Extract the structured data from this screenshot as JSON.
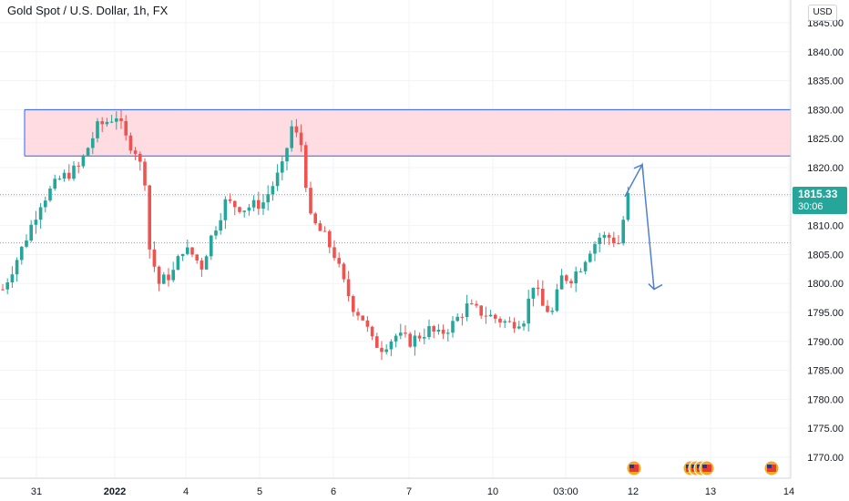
{
  "header": {
    "title": "Gold Spot / U.S. Dollar, 1h, FX",
    "currency": "USD"
  },
  "last_price": {
    "value": "1815.33",
    "countdown": "30:06",
    "color": "#26a69a"
  },
  "colors": {
    "up": "#26a69a",
    "down": "#ef5350",
    "zone_fill": "#ffd6dc",
    "zone_border": "#2962ff",
    "arrow": "#4f7fd1",
    "grid": "#f0f3fa",
    "axis_text": "#131722"
  },
  "chart_data": {
    "type": "candlestick",
    "title": "Gold Spot / U.S. Dollar, 1h, FX",
    "y_ticks": [
      "1770.00",
      "1775.00",
      "1780.00",
      "1785.00",
      "1790.00",
      "1795.00",
      "1800.00",
      "1805.00",
      "1810.00",
      "1815.00",
      "1820.00",
      "1825.00",
      "1830.00",
      "1835.00",
      "1840.00",
      "1845.00"
    ],
    "ylim": [
      1768.0,
      1847.0
    ],
    "x_ticks": [
      "31",
      "2022",
      "4",
      "5",
      "6",
      "7",
      "10",
      "03:00",
      "12",
      "13",
      "14"
    ],
    "resistance_zone": {
      "from": 1822.0,
      "to": 1830.0
    },
    "reference_lines": [
      1815.33,
      1807.0
    ],
    "projection": [
      1820.5,
      1799.0
    ],
    "close_path": [
      [
        0,
        1799
      ],
      [
        4,
        1806
      ],
      [
        8,
        1814
      ],
      [
        12,
        1818
      ],
      [
        16,
        1820
      ],
      [
        20,
        1827
      ],
      [
        24,
        1829
      ],
      [
        26,
        1825
      ],
      [
        28,
        1823
      ],
      [
        30,
        1818
      ],
      [
        31,
        1806
      ],
      [
        33,
        1800
      ],
      [
        36,
        1802
      ],
      [
        38,
        1806
      ],
      [
        40,
        1805
      ],
      [
        42,
        1803
      ],
      [
        44,
        1808
      ],
      [
        47,
        1814
      ],
      [
        51,
        1813
      ],
      [
        55,
        1814
      ],
      [
        59,
        1820
      ],
      [
        61,
        1827
      ],
      [
        63,
        1824
      ],
      [
        65,
        1811
      ],
      [
        68,
        1808
      ],
      [
        70,
        1805
      ],
      [
        72,
        1800
      ],
      [
        74,
        1796
      ],
      [
        76,
        1794
      ],
      [
        78,
        1790
      ],
      [
        80,
        1789
      ],
      [
        83,
        1791
      ],
      [
        86,
        1790
      ],
      [
        90,
        1792
      ],
      [
        92,
        1791
      ],
      [
        95,
        1793
      ],
      [
        98,
        1796
      ],
      [
        101,
        1795
      ],
      [
        104,
        1794
      ],
      [
        107,
        1793
      ],
      [
        110,
        1794
      ],
      [
        112,
        1800
      ],
      [
        114,
        1796
      ],
      [
        116,
        1795
      ],
      [
        118,
        1801
      ],
      [
        120,
        1801
      ],
      [
        122,
        1803
      ],
      [
        124,
        1806
      ],
      [
        126,
        1808
      ],
      [
        128,
        1808
      ],
      [
        130,
        1807
      ],
      [
        132,
        1815
      ]
    ]
  }
}
